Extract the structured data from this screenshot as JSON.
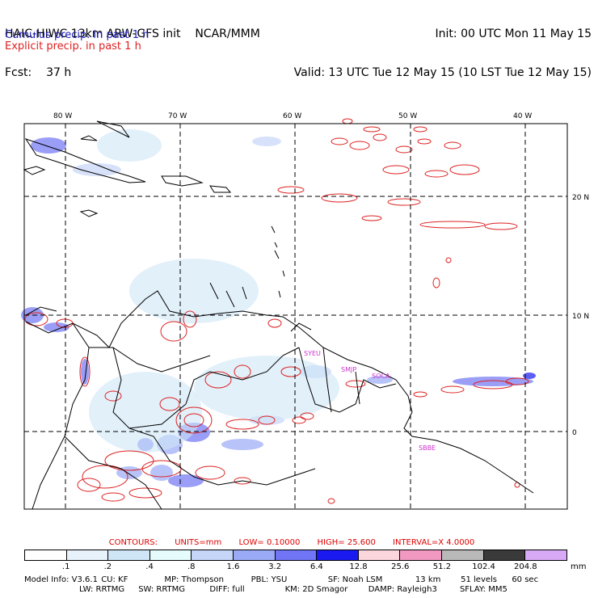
{
  "header": {
    "model": "HAIC-HIWC 13km ARW-GFS init",
    "org": "NCAR/MMM",
    "fcst_label": "Fcst:",
    "fcst_value": "37 h",
    "init": "Init: 00 UTC Mon 11 May 15",
    "valid": "Valid: 13 UTC Tue 12 May 15 (10 LST Tue 12 May 15)"
  },
  "legend": {
    "cumulus": "Cumulus precip. in past 1 h",
    "explicit": "Explicit precip. in past 1 h",
    "cumulus_color": "#2222bb",
    "explicit_color": "#dd2222"
  },
  "map": {
    "lon_labels": [
      "80 W",
      "70 W",
      "60 W",
      "50 W",
      "40 W"
    ],
    "lat_labels": [
      "20 N",
      "10 N",
      "0"
    ],
    "stations": [
      "SYEU",
      "SMJP",
      "SOCA",
      "SBBE"
    ],
    "station_color": "#cc33cc",
    "coast_color": "#000000",
    "grid_color": "#000000"
  },
  "contours": {
    "title": "CONTOURS:",
    "units": "UNITS=mm",
    "low": "LOW= 0.10000",
    "high": "HIGH= 25.600",
    "interval": "INTERVAL=X 4.0000"
  },
  "colorbar": {
    "labels": [
      ".1",
      ".2",
      ".4",
      ".8",
      "1.6",
      "3.2",
      "6.4",
      "12.8",
      "25.6",
      "51.2",
      "102.4",
      "204.8"
    ],
    "colors": [
      "#ffffff",
      "#e8f2fb",
      "#cfe6f7",
      "#e6fbfb",
      "#c6d6f8",
      "#9aaaf6",
      "#6f75f4",
      "#1a1af0",
      "#fbd6dc",
      "#f299c2",
      "#b9b9b9",
      "#3a3a3a",
      "#d8aaf6"
    ],
    "unit": "mm"
  },
  "footer": {
    "row1": [
      "Model Info: V3.6.1",
      "CU: KF",
      "MP: Thompson",
      "PBL: YSU",
      "SF: Noah LSM",
      "13 km",
      "51 levels",
      "60 sec"
    ],
    "row2": [
      "LW: RRTMG",
      "SW: RRTMG",
      "DIFF: full",
      "KM: 2D Smagor",
      "DAMP: Rayleigh3",
      "SFLAY: MM5"
    ]
  }
}
